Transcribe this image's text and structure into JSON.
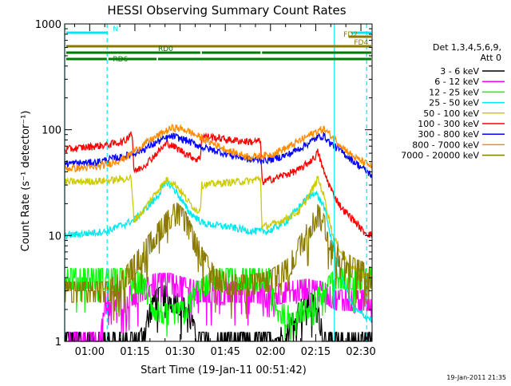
{
  "chart_data": {
    "type": "line",
    "title": "HESSI Observing Summary Count Rates",
    "xlabel": "Start Time (19-Jan-11 00:51:42)",
    "ylabel": "Count Rate (s⁻¹ detector⁻¹)",
    "y_scale": "log",
    "ylim": [
      1,
      1000
    ],
    "xlim_minutes_after_start": [
      0,
      102
    ],
    "y_ticks": [
      "1",
      "10",
      "100",
      "1000"
    ],
    "x_ticks": [
      {
        "label": "01:00",
        "t": 8.3
      },
      {
        "label": "01:15",
        "t": 23.3
      },
      {
        "label": "01:30",
        "t": 38.3
      },
      {
        "label": "01:45",
        "t": 53.3
      },
      {
        "label": "02:00",
        "t": 68.3
      },
      {
        "label": "02:15",
        "t": 83.3
      },
      {
        "label": "02:30",
        "t": 98.3
      }
    ],
    "footer_date": "19-Jan-2011 21:35",
    "legend": {
      "header_line1": "Det 1,3,4,5,6,9,",
      "header_line2": "Att 0",
      "placement": "right, outside plot"
    },
    "flags": [
      {
        "label": "N",
        "color": "#00e8ee",
        "segments": [
          [
            0,
            14.2
          ],
          [
            95,
            102
          ]
        ]
      },
      {
        "label": "FD2",
        "color": "#8b7a00",
        "segments": [
          [
            94.2,
            102
          ]
        ]
      },
      {
        "label": "FD4",
        "color": "#8b7a00",
        "segments": [
          [
            0,
            102
          ]
        ]
      },
      {
        "label": "RD0",
        "color": "#007a00",
        "segments": [
          [
            0,
            45
          ],
          [
            45.5,
            65
          ],
          [
            65.5,
            102
          ]
        ]
      },
      {
        "label": "RD6",
        "color": "#007a00",
        "segments": [
          [
            0,
            14
          ],
          [
            14.5,
            30.5
          ],
          [
            31,
            102
          ]
        ]
      }
    ],
    "vertical_markers": [
      {
        "t": 0,
        "style": "solid",
        "color": "#00e8ee"
      },
      {
        "t": 14.1,
        "style": "dashed",
        "color": "#00e8ee"
      },
      {
        "t": 89.5,
        "style": "solid",
        "color": "#00e8ee"
      },
      {
        "t": 100.2,
        "style": "dashed",
        "color": "#00e8ee"
      }
    ],
    "series": [
      {
        "name": "3 - 6 keV",
        "color": "#000000",
        "kind": "noise",
        "points": [
          [
            0,
            1
          ],
          [
            25,
            1
          ],
          [
            27,
            1.5
          ],
          [
            30,
            2.5
          ],
          [
            33,
            2.8
          ],
          [
            36,
            2.5
          ],
          [
            41,
            2
          ],
          [
            44,
            1
          ],
          [
            68,
            1
          ],
          [
            74,
            1.2
          ],
          [
            78,
            2
          ],
          [
            81,
            2.5
          ],
          [
            84,
            2
          ],
          [
            86,
            1
          ],
          [
            102,
            1
          ]
        ]
      },
      {
        "name": "6 - 12 keV",
        "color": "#ff00ff",
        "kind": "noise",
        "points": [
          [
            0,
            1
          ],
          [
            12,
            1
          ],
          [
            13,
            2.3
          ],
          [
            20,
            2.6
          ],
          [
            25,
            3
          ],
          [
            30,
            3.6
          ],
          [
            35,
            3.6
          ],
          [
            41,
            3.2
          ],
          [
            46,
            3
          ],
          [
            55,
            3
          ],
          [
            62,
            3
          ],
          [
            68,
            2.8
          ],
          [
            74,
            3
          ],
          [
            80,
            3.2
          ],
          [
            86,
            3
          ],
          [
            90,
            2.5
          ],
          [
            102,
            2.5
          ]
        ]
      },
      {
        "name": "12 - 25 keV",
        "color": "#00ff00",
        "kind": "noise",
        "points": [
          [
            0,
            4
          ],
          [
            23,
            4
          ],
          [
            26,
            3.5
          ],
          [
            30,
            2
          ],
          [
            35,
            1.8
          ],
          [
            40,
            2
          ],
          [
            44,
            3
          ],
          [
            50,
            4
          ],
          [
            68,
            4
          ],
          [
            70,
            2
          ],
          [
            74,
            1.8
          ],
          [
            80,
            2
          ],
          [
            86,
            3
          ],
          [
            90,
            4
          ],
          [
            102,
            4
          ]
        ]
      },
      {
        "name": "25 - 50 keV",
        "color": "#00e8ee",
        "kind": "line",
        "points": [
          [
            0,
            10
          ],
          [
            14,
            11
          ],
          [
            23,
            14
          ],
          [
            30,
            22
          ],
          [
            34,
            32
          ],
          [
            37,
            26
          ],
          [
            41,
            17
          ],
          [
            46,
            13
          ],
          [
            55,
            12
          ],
          [
            62,
            11
          ],
          [
            68,
            11
          ],
          [
            74,
            14
          ],
          [
            80,
            22
          ],
          [
            83,
            26
          ],
          [
            86,
            19
          ],
          [
            89,
            8
          ],
          [
            92,
            4
          ],
          [
            96,
            2
          ],
          [
            102,
            1.6
          ]
        ]
      },
      {
        "name": "50 - 100 keV",
        "color": "#cccc00",
        "kind": "line",
        "points": [
          [
            0,
            32
          ],
          [
            14,
            33
          ],
          [
            22,
            35
          ],
          [
            23,
            14
          ],
          [
            26,
            17
          ],
          [
            30,
            25
          ],
          [
            34,
            34
          ],
          [
            37,
            30
          ],
          [
            41,
            21
          ],
          [
            44,
            17
          ],
          [
            45,
            18
          ],
          [
            45.5,
            30
          ],
          [
            55,
            32
          ],
          [
            62,
            33
          ],
          [
            65,
            35
          ],
          [
            65.5,
            12
          ],
          [
            70,
            13
          ],
          [
            78,
            17
          ],
          [
            83,
            30
          ],
          [
            84,
            35
          ],
          [
            86,
            24
          ],
          [
            89,
            10
          ],
          [
            93,
            6
          ],
          [
            97,
            4.5
          ],
          [
            102,
            4
          ]
        ]
      },
      {
        "name": "100 - 300 keV",
        "color": "#ff0000",
        "kind": "line",
        "points": [
          [
            0,
            65
          ],
          [
            14,
            72
          ],
          [
            20,
            78
          ],
          [
            22,
            95
          ],
          [
            22.5,
            85
          ],
          [
            23,
            40
          ],
          [
            26,
            45
          ],
          [
            30,
            58
          ],
          [
            34,
            75
          ],
          [
            38,
            65
          ],
          [
            41,
            58
          ],
          [
            44,
            52
          ],
          [
            45,
            55
          ],
          [
            45.5,
            88
          ],
          [
            55,
            80
          ],
          [
            62,
            77
          ],
          [
            65,
            78
          ],
          [
            65.5,
            32
          ],
          [
            70,
            35
          ],
          [
            78,
            42
          ],
          [
            83,
            55
          ],
          [
            84,
            62
          ],
          [
            86,
            40
          ],
          [
            89,
            25
          ],
          [
            92,
            18
          ],
          [
            96,
            14
          ],
          [
            99,
            11
          ],
          [
            102,
            10
          ]
        ]
      },
      {
        "name": "300 - 800 keV",
        "color": "#0000ff",
        "kind": "line",
        "points": [
          [
            0,
            48
          ],
          [
            10,
            49
          ],
          [
            14,
            52
          ],
          [
            20,
            56
          ],
          [
            26,
            65
          ],
          [
            32,
            80
          ],
          [
            36,
            87
          ],
          [
            40,
            80
          ],
          [
            46,
            68
          ],
          [
            55,
            58
          ],
          [
            62,
            52
          ],
          [
            68,
            52
          ],
          [
            74,
            58
          ],
          [
            80,
            72
          ],
          [
            84,
            85
          ],
          [
            86,
            88
          ],
          [
            88,
            75
          ],
          [
            92,
            62
          ],
          [
            96,
            50
          ],
          [
            102,
            37
          ]
        ]
      },
      {
        "name": "800 - 7000 keV",
        "color": "#ff8c00",
        "kind": "line",
        "points": [
          [
            0,
            43
          ],
          [
            10,
            44
          ],
          [
            14,
            47
          ],
          [
            20,
            54
          ],
          [
            26,
            72
          ],
          [
            32,
            92
          ],
          [
            36,
            105
          ],
          [
            40,
            100
          ],
          [
            46,
            82
          ],
          [
            55,
            62
          ],
          [
            62,
            55
          ],
          [
            68,
            58
          ],
          [
            74,
            68
          ],
          [
            80,
            85
          ],
          [
            84,
            98
          ],
          [
            86,
            102
          ],
          [
            88,
            90
          ],
          [
            92,
            70
          ],
          [
            96,
            55
          ],
          [
            102,
            45
          ]
        ]
      },
      {
        "name": "7000 - 20000 keV",
        "color": "#8b7a00",
        "kind": "noise",
        "points": [
          [
            0,
            3
          ],
          [
            14,
            3
          ],
          [
            20,
            4
          ],
          [
            26,
            7
          ],
          [
            30,
            10
          ],
          [
            34,
            14
          ],
          [
            37,
            17
          ],
          [
            40,
            14
          ],
          [
            43,
            9
          ],
          [
            46,
            6
          ],
          [
            50,
            4
          ],
          [
            55,
            3.5
          ],
          [
            62,
            3.5
          ],
          [
            68,
            3.8
          ],
          [
            74,
            5
          ],
          [
            78,
            8
          ],
          [
            82,
            13
          ],
          [
            84,
            16
          ],
          [
            86,
            13
          ],
          [
            89,
            8
          ],
          [
            92,
            6
          ],
          [
            96,
            5
          ],
          [
            100,
            4.5
          ],
          [
            102,
            4
          ]
        ]
      }
    ]
  }
}
